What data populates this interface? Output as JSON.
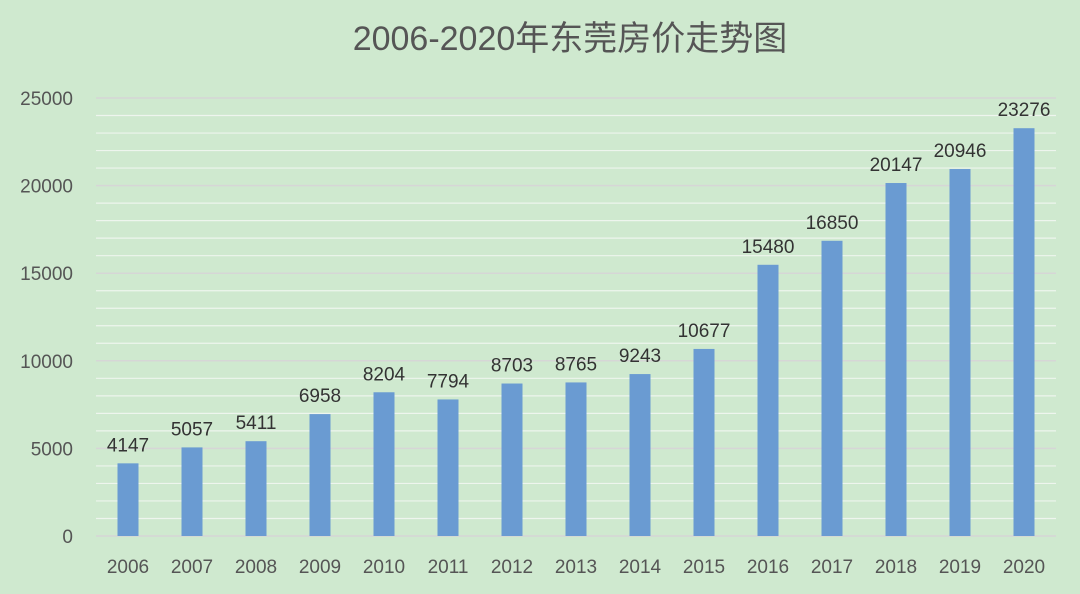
{
  "chart_data": {
    "type": "bar",
    "title": "2006-2020年东莞房价走势图",
    "xlabel": "",
    "ylabel": "",
    "categories": [
      "2006",
      "2007",
      "2008",
      "2009",
      "2010",
      "2011",
      "2012",
      "2013",
      "2014",
      "2015",
      "2016",
      "2017",
      "2018",
      "2019",
      "2020"
    ],
    "values": [
      4147,
      5057,
      5411,
      6958,
      8204,
      7794,
      8703,
      8765,
      9243,
      10677,
      15480,
      16850,
      20147,
      20946,
      23276
    ],
    "ylim": [
      0,
      25000
    ],
    "yticks": [
      0,
      5000,
      10000,
      15000,
      20000,
      25000
    ],
    "minor_grid_step": 1000,
    "grid": true,
    "legend": "none",
    "data_labels": true,
    "colors": {
      "background": "#cfe9cf",
      "bar": "#6a9bd2",
      "major_grid": "#d6d6d6",
      "minor_grid": "#eef5ee",
      "text": "#555555"
    }
  }
}
